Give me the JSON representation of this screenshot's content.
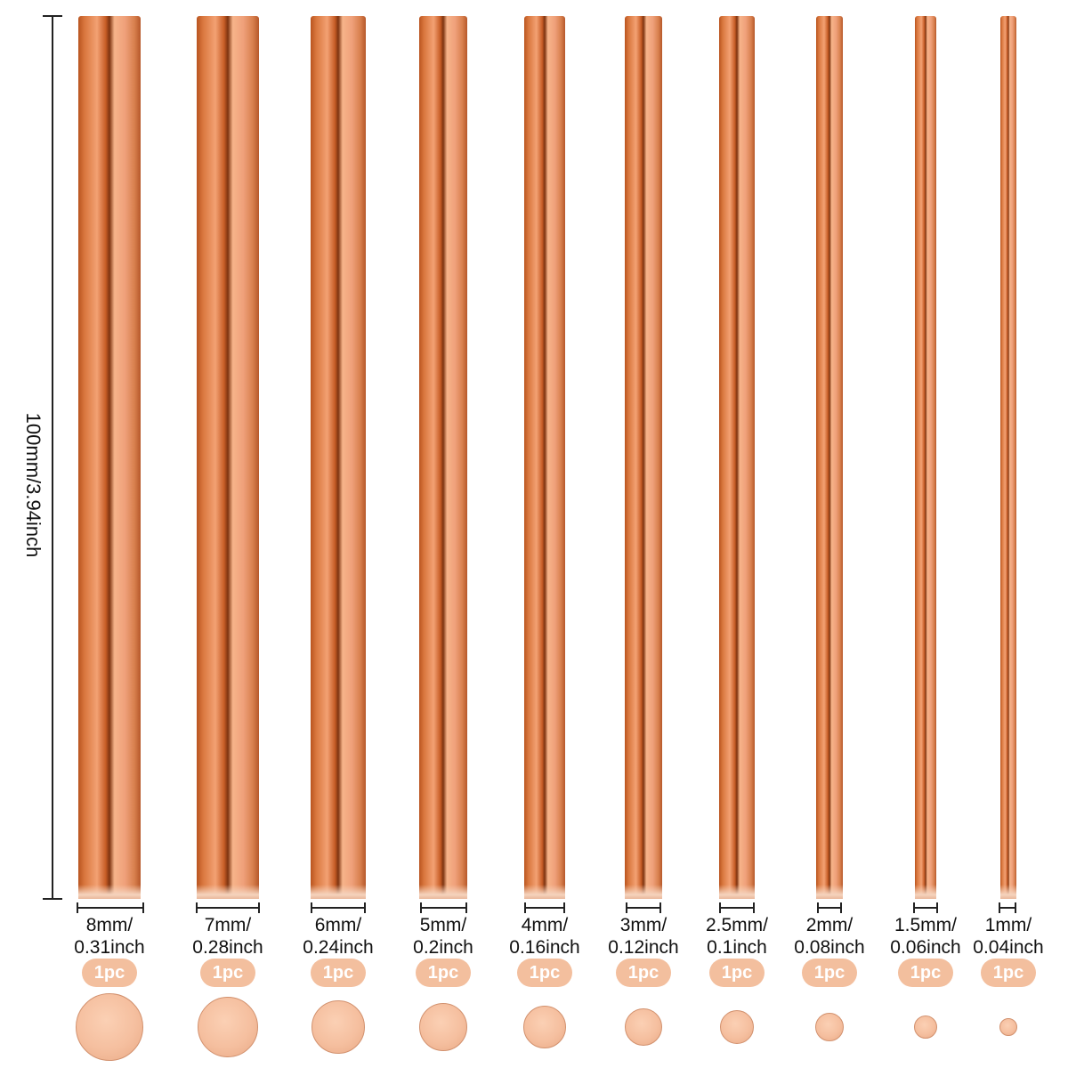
{
  "length_label": "100mm/3.94inch",
  "colors": {
    "copper": "#d9773e",
    "pill": "#f3bf9e",
    "disc": "#f5bf9f"
  },
  "rods": [
    {
      "mm": "8mm/",
      "inch": "0.31inch",
      "qty": "1pc"
    },
    {
      "mm": "7mm/",
      "inch": "0.28inch",
      "qty": "1pc"
    },
    {
      "mm": "6mm/",
      "inch": "0.24inch",
      "qty": "1pc"
    },
    {
      "mm": "5mm/",
      "inch": "0.2inch",
      "qty": "1pc"
    },
    {
      "mm": "4mm/",
      "inch": "0.16inch",
      "qty": "1pc"
    },
    {
      "mm": "3mm/",
      "inch": "0.12inch",
      "qty": "1pc"
    },
    {
      "mm": "2.5mm/",
      "inch": "0.1inch",
      "qty": "1pc"
    },
    {
      "mm": "2mm/",
      "inch": "0.08inch",
      "qty": "1pc"
    },
    {
      "mm": "1.5mm/",
      "inch": "0.06inch",
      "qty": "1pc"
    },
    {
      "mm": "1mm/",
      "inch": "0.04inch",
      "qty": "1pc"
    }
  ]
}
